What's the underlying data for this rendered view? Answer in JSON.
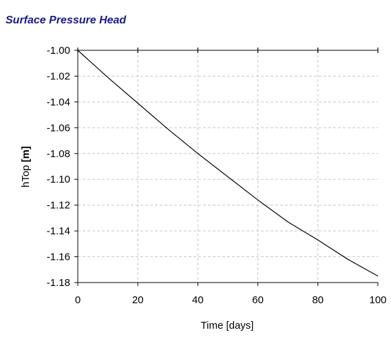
{
  "chart_data": {
    "type": "line",
    "title": "Surface Pressure Head",
    "xlabel": "Time [days]",
    "ylabel_parts": [
      "hTop ",
      "[m]"
    ],
    "xlim": [
      0,
      100
    ],
    "ylim": [
      -1.18,
      -1.0
    ],
    "xticks": [
      0,
      20,
      40,
      60,
      80,
      100
    ],
    "xtick_labels": [
      "0",
      "20",
      "40",
      "60",
      "80",
      "100"
    ],
    "yticks": [
      -1.0,
      -1.02,
      -1.04,
      -1.06,
      -1.08,
      -1.1,
      -1.12,
      -1.14,
      -1.16,
      -1.18
    ],
    "ytick_labels": [
      "-1.00",
      "-1.02",
      "-1.04",
      "-1.06",
      "-1.08",
      "-1.10",
      "-1.12",
      "-1.14",
      "-1.16",
      "-1.18"
    ],
    "grid": true,
    "series": [
      {
        "x": [
          0,
          10,
          20,
          30,
          40,
          50,
          60,
          70,
          80,
          90,
          100
        ],
        "y": [
          -1.0,
          -1.021,
          -1.041,
          -1.061,
          -1.08,
          -1.098,
          -1.116,
          -1.133,
          -1.147,
          -1.162,
          -1.175
        ]
      }
    ],
    "colors": {
      "title": "#1a1a8c",
      "line": "#000000",
      "grid": "#c8c8c8",
      "axis": "#000000"
    }
  }
}
